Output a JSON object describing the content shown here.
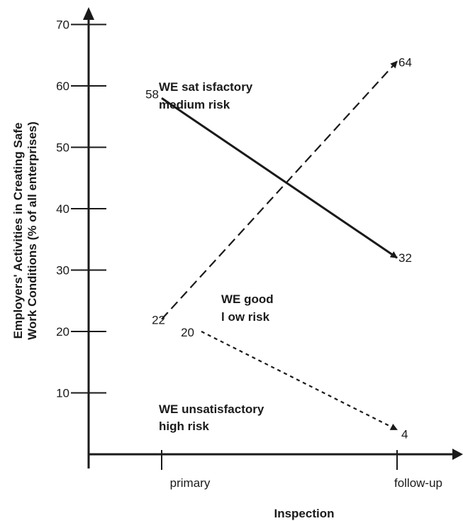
{
  "chart_data": {
    "type": "line",
    "xlabel": "Inspection",
    "ylabel_line1": "Employers' Activities in Creating Safe",
    "ylabel_line2": "Work Conditions (% of all enterprises)",
    "categories": [
      "primary",
      "follow-up"
    ],
    "ylim": [
      0,
      75
    ],
    "yticks": [
      10,
      20,
      30,
      40,
      50,
      60,
      70
    ],
    "grid": false,
    "series": [
      {
        "values": [
          58,
          32
        ],
        "labels": [
          "58",
          "32"
        ],
        "style": "solid",
        "color": "#1a1a1a"
      },
      {
        "values": [
          22,
          64
        ],
        "labels": [
          "22",
          "64"
        ],
        "style": "dashed",
        "color": "#1a1a1a"
      },
      {
        "values": [
          20,
          4
        ],
        "labels": [
          "20",
          "4"
        ],
        "style": "dotted",
        "color": "#1a1a1a"
      }
    ],
    "annotations": [
      {
        "line1": "WE sat isfactory",
        "line2": "medium risk"
      },
      {
        "line1": "WE good",
        "line2": "l ow risk"
      },
      {
        "line1": "WE unsatisfactory",
        "line2": "high risk"
      }
    ]
  }
}
